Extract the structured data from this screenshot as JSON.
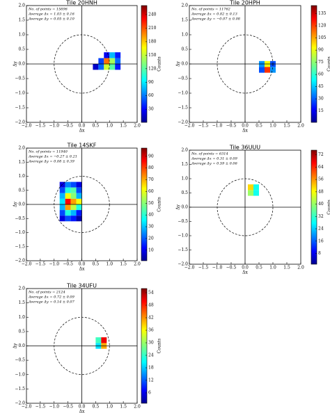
{
  "chart_data": [
    {
      "type": "heatmap",
      "title": "Tile 20HNH",
      "annotations": [
        "No. of points = 15896",
        "Average Δx = 1.03 ± 0.16",
        "Average Δy = 0.05 ± 0.10"
      ],
      "xlabel": "Δx",
      "ylabel": "Δy",
      "colorbar_label": "Counts",
      "xlim": [
        -2,
        2
      ],
      "ylim": [
        -2,
        2
      ],
      "xticks": [
        {
          "value": -2,
          "label": "−2.0"
        },
        {
          "value": -1.5,
          "label": "−1.5"
        },
        {
          "value": -1,
          "label": "−1.0"
        },
        {
          "value": -0.5,
          "label": "−0.5"
        },
        {
          "value": 0,
          "label": "0.0"
        },
        {
          "value": 0.5,
          "label": "0.5"
        },
        {
          "value": 1,
          "label": "1.0"
        },
        {
          "value": 1.5,
          "label": "1.5"
        },
        {
          "value": 2,
          "label": "2.0"
        }
      ],
      "yticks": [
        {
          "value": -2,
          "label": "−2.0"
        },
        {
          "value": -1.5,
          "label": "−1.5"
        },
        {
          "value": -1,
          "label": "−1.0"
        },
        {
          "value": -0.5,
          "label": "−0.5"
        },
        {
          "value": 0,
          "label": "0.0"
        },
        {
          "value": 0.5,
          "label": "0.5"
        },
        {
          "value": 1,
          "label": "1.0"
        },
        {
          "value": 1.5,
          "label": "1.5"
        },
        {
          "value": 2,
          "label": "2.0"
        }
      ],
      "clim": [
        1,
        260
      ],
      "cticks": [
        30,
        60,
        90,
        120,
        150,
        180,
        210,
        240
      ],
      "bin_width": 0.2,
      "reference_circle_radius": 1,
      "x": [
        0.5,
        0.7,
        0.9,
        1.1,
        1.3,
        0.7,
        0.9,
        1.1,
        1.3,
        0.9,
        1.1,
        1.3
      ],
      "y": [
        -0.1,
        -0.1,
        -0.1,
        -0.1,
        -0.1,
        0.1,
        0.1,
        0.1,
        0.1,
        0.3,
        0.3,
        0.3
      ],
      "values": [
        20,
        60,
        150,
        120,
        40,
        50,
        200,
        140,
        60,
        30,
        80,
        40
      ]
    },
    {
      "type": "heatmap",
      "title": "Tile 20HPH",
      "annotations": [
        "No. of points = 11762",
        "Average Δx = 0.82 ± 0.13",
        "Average Δy = −0.07 ± 0.08"
      ],
      "xlabel": "Δx",
      "ylabel": "Δy",
      "colorbar_label": "Counts",
      "xlim": [
        -2,
        2
      ],
      "ylim": [
        -2,
        2
      ],
      "xticks": [
        {
          "value": -2,
          "label": "−2.0"
        },
        {
          "value": -1.5,
          "label": "−1.5"
        },
        {
          "value": -1,
          "label": "−1.0"
        },
        {
          "value": -0.5,
          "label": "−0.5"
        },
        {
          "value": 0,
          "label": "0.0"
        },
        {
          "value": 0.5,
          "label": "0.5"
        },
        {
          "value": 1,
          "label": "1.0"
        },
        {
          "value": 1.5,
          "label": "1.5"
        },
        {
          "value": 2,
          "label": "2.0"
        }
      ],
      "yticks": [
        {
          "value": -2,
          "label": "−2.0"
        },
        {
          "value": -1.5,
          "label": "−1.5"
        },
        {
          "value": -1,
          "label": "−1.0"
        },
        {
          "value": -0.5,
          "label": "−0.5"
        },
        {
          "value": 0,
          "label": "0.0"
        },
        {
          "value": 0.5,
          "label": "0.5"
        },
        {
          "value": 1,
          "label": "1.0"
        },
        {
          "value": 1.5,
          "label": "1.5"
        },
        {
          "value": 2,
          "label": "2.0"
        }
      ],
      "clim": [
        1,
        145
      ],
      "cticks": [
        15,
        30,
        45,
        60,
        75,
        90,
        105,
        120,
        135
      ],
      "bin_width": 0.2,
      "reference_circle_radius": 1,
      "x": [
        0.6,
        0.8,
        1.0,
        0.6,
        0.8,
        1.0
      ],
      "y": [
        -0.2,
        -0.2,
        -0.2,
        0.0,
        0.0,
        0.0
      ],
      "values": [
        30,
        120,
        40,
        40,
        90,
        30
      ]
    },
    {
      "type": "heatmap",
      "title": "Tile 14SKF",
      "annotations": [
        "No. of points = 11940",
        "Average Δx = −0.27 ± 0.21",
        "Average Δy = 0.08 ± 0.39"
      ],
      "xlabel": "Δx",
      "ylabel": "Δy",
      "colorbar_label": "Counts",
      "xlim": [
        -2,
        2
      ],
      "ylim": [
        -2,
        2
      ],
      "xticks": [
        {
          "value": -2,
          "label": "−2.0"
        },
        {
          "value": -1.5,
          "label": "−1.5"
        },
        {
          "value": -1,
          "label": "−1.0"
        },
        {
          "value": -0.5,
          "label": "−0.5"
        },
        {
          "value": 0,
          "label": "0.0"
        },
        {
          "value": 0.5,
          "label": "0.5"
        },
        {
          "value": 1,
          "label": "1.0"
        },
        {
          "value": 1.5,
          "label": "1.5"
        },
        {
          "value": 2,
          "label": "2.0"
        }
      ],
      "yticks": [
        {
          "value": -2,
          "label": "−2.0"
        },
        {
          "value": -1.5,
          "label": "−1.5"
        },
        {
          "value": -1,
          "label": "−1.0"
        },
        {
          "value": -0.5,
          "label": "−0.5"
        },
        {
          "value": 0,
          "label": "0.0"
        },
        {
          "value": 0.5,
          "label": "0.5"
        },
        {
          "value": 1,
          "label": "1.0"
        },
        {
          "value": 1.5,
          "label": "1.5"
        },
        {
          "value": 2,
          "label": "2.0"
        }
      ],
      "clim": [
        1,
        97
      ],
      "cticks": [
        10,
        20,
        30,
        40,
        50,
        60,
        70,
        80,
        90
      ],
      "bin_width": 0.2,
      "reference_circle_radius": 1,
      "x": [
        -0.7,
        -0.5,
        -0.3,
        -0.1,
        -0.7,
        -0.5,
        -0.3,
        -0.1,
        -0.7,
        -0.5,
        -0.3,
        -0.1,
        -0.7,
        -0.5,
        -0.3,
        -0.1,
        -0.7,
        -0.5,
        -0.3,
        -0.1,
        -0.7,
        -0.5,
        -0.3,
        -0.1,
        -0.7,
        -0.5,
        -0.3,
        -0.1
      ],
      "y": [
        0.7,
        0.7,
        0.7,
        0.7,
        0.5,
        0.5,
        0.5,
        0.5,
        0.3,
        0.3,
        0.3,
        0.3,
        0.1,
        0.1,
        0.1,
        0.1,
        -0.1,
        -0.1,
        -0.1,
        -0.1,
        -0.3,
        -0.3,
        -0.3,
        -0.3,
        -0.5,
        -0.5,
        -0.5,
        -0.5
      ],
      "values": [
        10,
        25,
        20,
        10,
        20,
        40,
        45,
        20,
        30,
        60,
        50,
        30,
        35,
        85,
        70,
        60,
        30,
        70,
        55,
        40,
        20,
        40,
        30,
        15,
        10,
        20,
        15,
        5
      ]
    },
    {
      "type": "heatmap",
      "title": "Tile 36UUU",
      "annotations": [
        "No. of points = 6314",
        "Average Δx = 0.31 ± 0.09",
        "Average Δy = 0.59 ± 0.06"
      ],
      "xlabel": "Δx",
      "ylabel": "Δy",
      "colorbar_label": "Counts",
      "xlim": [
        -2,
        2
      ],
      "ylim": [
        -2,
        2
      ],
      "xticks": [
        {
          "value": -2,
          "label": "−2.0"
        },
        {
          "value": -1.5,
          "label": "−1.5"
        },
        {
          "value": -1,
          "label": "−1.0"
        },
        {
          "value": -0.5,
          "label": "−0.5"
        },
        {
          "value": 0,
          "label": "0.0"
        },
        {
          "value": 0.5,
          "label": "0.5"
        },
        {
          "value": 1,
          "label": "1.0"
        },
        {
          "value": 1.5,
          "label": "1.5"
        },
        {
          "value": 2,
          "label": "2.0"
        }
      ],
      "yticks": [
        {
          "value": -2,
          "label": "−2.0"
        },
        {
          "value": -1.5,
          "label": "−1.5"
        },
        {
          "value": -1,
          "label": "−1.0"
        },
        {
          "value": -0.5,
          "label": "−0.5"
        },
        {
          "value": 0,
          "label": "0.0"
        },
        {
          "value": 0.5,
          "label": "0.5"
        },
        {
          "value": 1,
          "label": "1.0"
        },
        {
          "value": 1.5,
          "label": "1.5"
        },
        {
          "value": 2,
          "label": "2.0"
        }
      ],
      "clim": [
        1,
        75
      ],
      "cticks": [
        8,
        16,
        24,
        32,
        40,
        48,
        56,
        64,
        72
      ],
      "bin_width": 0.2,
      "reference_circle_radius": 1,
      "x": [
        0.2,
        0.4,
        0.2,
        0.4
      ],
      "y": [
        0.5,
        0.5,
        0.7,
        0.7
      ],
      "values": [
        40,
        30,
        50,
        30
      ]
    },
    {
      "type": "heatmap",
      "title": "Tile 34UFU",
      "annotations": [
        "No. of points = 2124",
        "Average Δx = 0.72 ± 0.09",
        "Average Δy = 0.14 ± 0.07"
      ],
      "xlabel": "Δx",
      "ylabel": "Δy",
      "colorbar_label": "Counts",
      "xlim": [
        -2,
        2
      ],
      "ylim": [
        -2,
        2
      ],
      "xticks": [
        {
          "value": -2,
          "label": "−2.0"
        },
        {
          "value": -1.5,
          "label": "−1.5"
        },
        {
          "value": -1,
          "label": "−1.0"
        },
        {
          "value": -0.5,
          "label": "−0.5"
        },
        {
          "value": 0,
          "label": "0.0"
        },
        {
          "value": 0.5,
          "label": "0.5"
        },
        {
          "value": 1,
          "label": "1.0"
        },
        {
          "value": 1.5,
          "label": "1.5"
        },
        {
          "value": 2,
          "label": "2.0"
        }
      ],
      "yticks": [
        {
          "value": -2,
          "label": "−2.0"
        },
        {
          "value": -1.5,
          "label": "−1.5"
        },
        {
          "value": -1,
          "label": "−1.0"
        },
        {
          "value": -0.5,
          "label": "−0.5"
        },
        {
          "value": 0,
          "label": "0.0"
        },
        {
          "value": 0.5,
          "label": "0.5"
        },
        {
          "value": 1,
          "label": "1.0"
        },
        {
          "value": 1.5,
          "label": "1.5"
        },
        {
          "value": 2,
          "label": "2.0"
        }
      ],
      "clim": [
        1,
        56
      ],
      "cticks": [
        6,
        12,
        18,
        24,
        30,
        36,
        42,
        48,
        54
      ],
      "bin_width": 0.2,
      "reference_circle_radius": 1,
      "x": [
        0.6,
        0.8,
        0.6,
        0.8
      ],
      "y": [
        0.0,
        0.0,
        0.2,
        0.2
      ],
      "values": [
        20,
        40,
        25,
        50
      ]
    }
  ]
}
